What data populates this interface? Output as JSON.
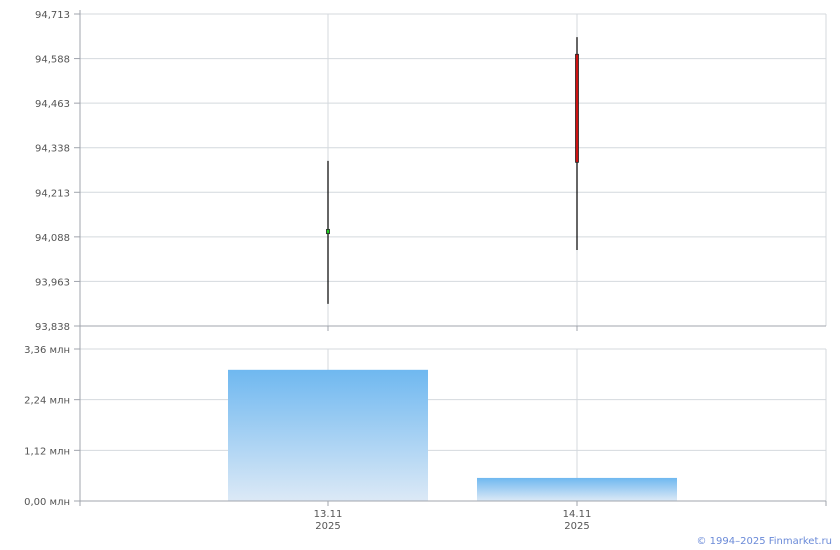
{
  "chart_data": [
    {
      "type": "candlestick",
      "categories": [
        "13.11\n2025",
        "14.11\n2025"
      ],
      "x_labels": [
        {
          "day": "13.11",
          "year": "2025"
        },
        {
          "day": "14.11",
          "year": "2025"
        }
      ],
      "series": [
        {
          "open": 94.097,
          "high": 94.301,
          "low": 93.9,
          "close": 94.109
        },
        {
          "open": 94.6,
          "high": 94.648,
          "low": 94.051,
          "close": 94.297
        }
      ],
      "ylim": [
        93.838,
        94.713
      ],
      "y_ticks": [
        "93,838",
        "93,963",
        "94,088",
        "94,213",
        "94,338",
        "94,463",
        "94,588",
        "94,713"
      ],
      "grid": true,
      "colors": {
        "up": "#22cc22",
        "down": "#cc1111",
        "wick": "#000000",
        "grid": "#d4d9de"
      }
    },
    {
      "type": "bar",
      "categories": [
        "13.11 2025",
        "14.11 2025"
      ],
      "values": [
        2.9,
        0.51
      ],
      "unit": "млн",
      "ylim": [
        0,
        3.36
      ],
      "y_ticks": [
        "0,00 млн",
        "1,12 млн",
        "2,24 млн",
        "3,36 млн"
      ],
      "grid": true,
      "colors": {
        "bar_top": "#6fb8f0",
        "bar_bottom": "#dce9f6"
      }
    }
  ],
  "footer": {
    "copyright": "© 1994–2025 Finmarket.ru"
  }
}
